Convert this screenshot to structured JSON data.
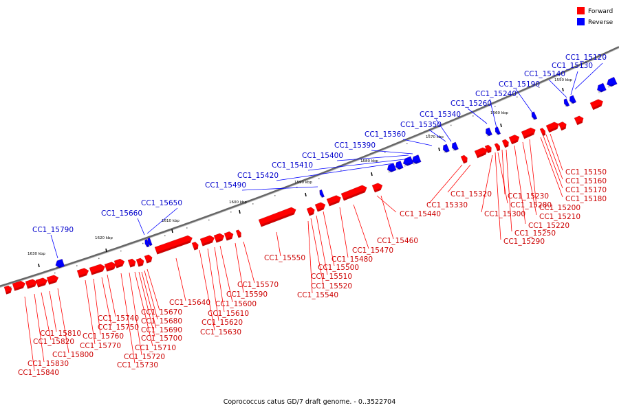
{
  "legend": [
    {
      "label": "Forward",
      "color": "#ff0000"
    },
    {
      "label": "Reverse",
      "color": "#0000ff"
    }
  ],
  "caption": "Coprococcus catus GD/7 draft genome. - 0..3522704",
  "colors": {
    "forward": "#ff0000",
    "forward_label": "#cc0000",
    "reverse": "#0000ff",
    "reverse_label": "#0000cc",
    "backbone": "#666666"
  },
  "ticks": [
    {
      "label": "1550 kbp"
    },
    {
      "label": "1560 kbp"
    },
    {
      "label": "1570 kbp"
    },
    {
      "label": "1580 kbp"
    },
    {
      "label": "1590 kbp"
    },
    {
      "label": "1600 kbp"
    },
    {
      "label": "1610 kbp"
    },
    {
      "label": "1620 kbp"
    },
    {
      "label": "1630 kbp"
    }
  ],
  "forward_genes": [
    "CC1_15150",
    "CC1_15160",
    "CC1_15170",
    "CC1_15180",
    "CC1_15200",
    "CC1_15210",
    "CC1_15220",
    "CC1_15230",
    "CC1_15250",
    "CC1_15280",
    "CC1_15290",
    "CC1_15300",
    "CC1_15320",
    "CC1_15330",
    "CC1_15440",
    "CC1_15460",
    "CC1_15470",
    "CC1_15480",
    "CC1_15500",
    "CC1_15510",
    "CC1_15520",
    "CC1_15540",
    "CC1_15550",
    "CC1_15570",
    "CC1_15590",
    "CC1_15600",
    "CC1_15610",
    "CC1_15620",
    "CC1_15630",
    "CC1_15640",
    "CC1_15670",
    "CC1_15680",
    "CC1_15690",
    "CC1_15700",
    "CC1_15710",
    "CC1_15720",
    "CC1_15730",
    "CC1_15740",
    "CC1_15750",
    "CC1_15760",
    "CC1_15770",
    "CC1_15800",
    "CC1_15810",
    "CC1_15820",
    "CC1_15830",
    "CC1_15840"
  ],
  "reverse_genes": [
    "CC1_15120",
    "CC1_15130",
    "CC1_15140",
    "CC1_15190",
    "CC1_15240",
    "CC1_15260",
    "CC1_15340",
    "CC1_15350",
    "CC1_15360",
    "CC1_15390",
    "CC1_15400",
    "CC1_15410",
    "CC1_15420",
    "CC1_15490",
    "CC1_15650",
    "CC1_15660",
    "CC1_15790"
  ]
}
